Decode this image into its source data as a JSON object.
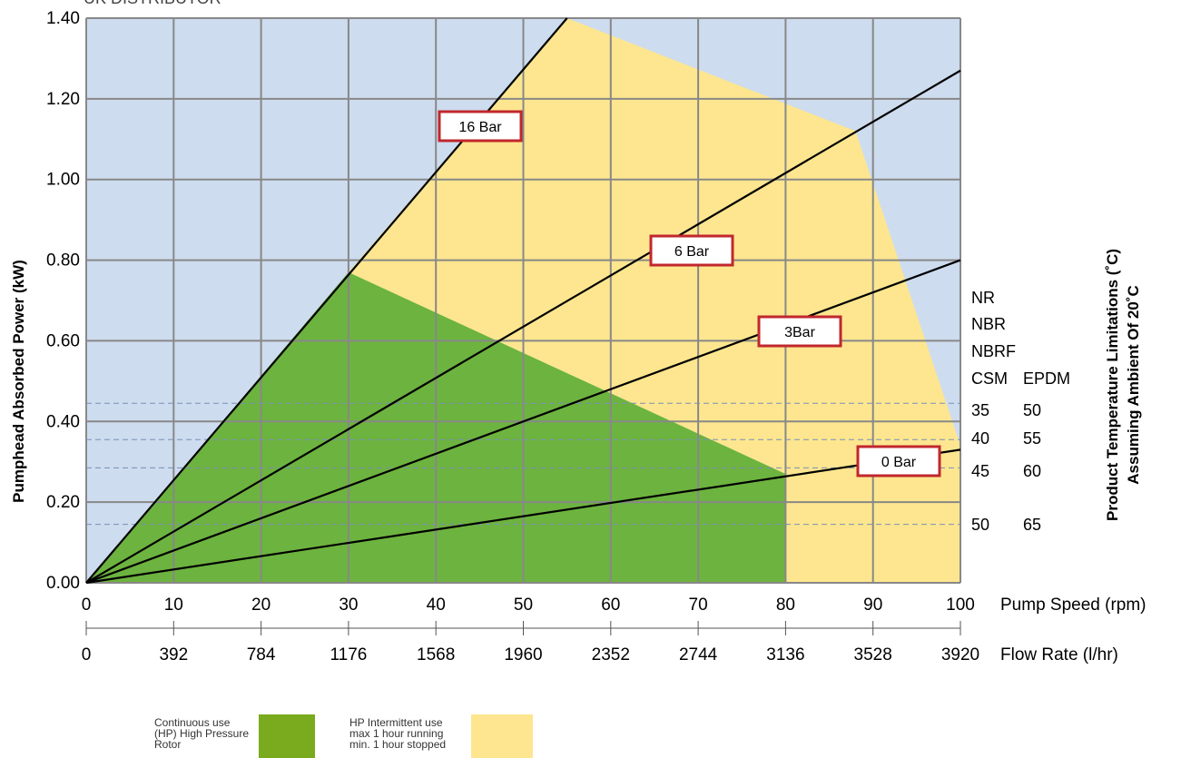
{
  "header_text": "UK DISTRIBUTOR",
  "colors": {
    "background_region": "#cddcee",
    "continuous": "#6db33f",
    "intermittent": "#fde68f",
    "grid": "#888888",
    "dashed": "#7a8fb8",
    "label_border": "#c1272d",
    "legend_continuous": "#7aab1e",
    "legend_intermittent": "#fde68f"
  },
  "chart_data": {
    "type": "line",
    "title": "",
    "ylabel": "Pumphead Absorbed Power (kW)",
    "xlabel": "Pump Speed (rpm)",
    "x2label": "Flow Rate (l/hr)",
    "xlim": [
      0,
      100
    ],
    "ylim": [
      0,
      1.4
    ],
    "x_ticks": [
      "0",
      "10",
      "20",
      "30",
      "40",
      "50",
      "60",
      "70",
      "80",
      "90",
      "100"
    ],
    "x2_ticks": [
      "0",
      "392",
      "784",
      "1176",
      "1568",
      "1960",
      "2352",
      "2744",
      "3136",
      "3528",
      "3920"
    ],
    "y_ticks": [
      "0.00",
      "0.20",
      "0.40",
      "0.60",
      "0.80",
      "1.00",
      "1.20",
      "1.40"
    ],
    "grid": true,
    "series": [
      {
        "name": "16 Bar",
        "x": [
          0,
          55
        ],
        "y": [
          0,
          1.4
        ]
      },
      {
        "name": "6 Bar",
        "x": [
          0,
          100
        ],
        "y": [
          0,
          1.27
        ]
      },
      {
        "name": "3Bar",
        "x": [
          0,
          100
        ],
        "y": [
          0,
          0.8
        ]
      },
      {
        "name": "0 Bar",
        "x": [
          0,
          100
        ],
        "y": [
          0,
          0.33
        ]
      }
    ],
    "regions": [
      {
        "name": "Continuous use (HP) High Pressure Rotor",
        "polygon": [
          [
            0,
            0
          ],
          [
            30,
            0.77
          ],
          [
            80,
            0.27
          ],
          [
            80,
            0
          ]
        ]
      },
      {
        "name": "HP Intermittent use max 1 hour running min. 1 hour stopped",
        "polygon": [
          [
            30,
            0.77
          ],
          [
            55,
            1.4
          ],
          [
            88,
            1.12
          ],
          [
            100,
            0.34
          ],
          [
            100,
            0
          ],
          [
            80,
            0
          ],
          [
            80,
            0.27
          ]
        ]
      }
    ],
    "temperature_lines": [
      0.445,
      0.355,
      0.285,
      0.145
    ],
    "temperature_axis": {
      "title_line1": "Product Temperature Limitations (˚C)",
      "title_line2": "Assuming Ambient Of 20˚C",
      "materials": [
        "NR",
        "NBR",
        "NBRF",
        "CSM",
        "EPDM"
      ],
      "rows": [
        {
          "csm": "35",
          "epdm": "50"
        },
        {
          "csm": "40",
          "epdm": "55"
        },
        {
          "csm": "45",
          "epdm": "60"
        },
        {
          "csm": "50",
          "epdm": "65"
        }
      ]
    }
  },
  "legend": {
    "continuous_line1": "Continuous use",
    "continuous_line2": "(HP) High Pressure",
    "continuous_line3": "Rotor",
    "intermittent_line1": "HP Intermittent use",
    "intermittent_line2": "max 1 hour running",
    "intermittent_line3": "min. 1 hour stopped"
  }
}
